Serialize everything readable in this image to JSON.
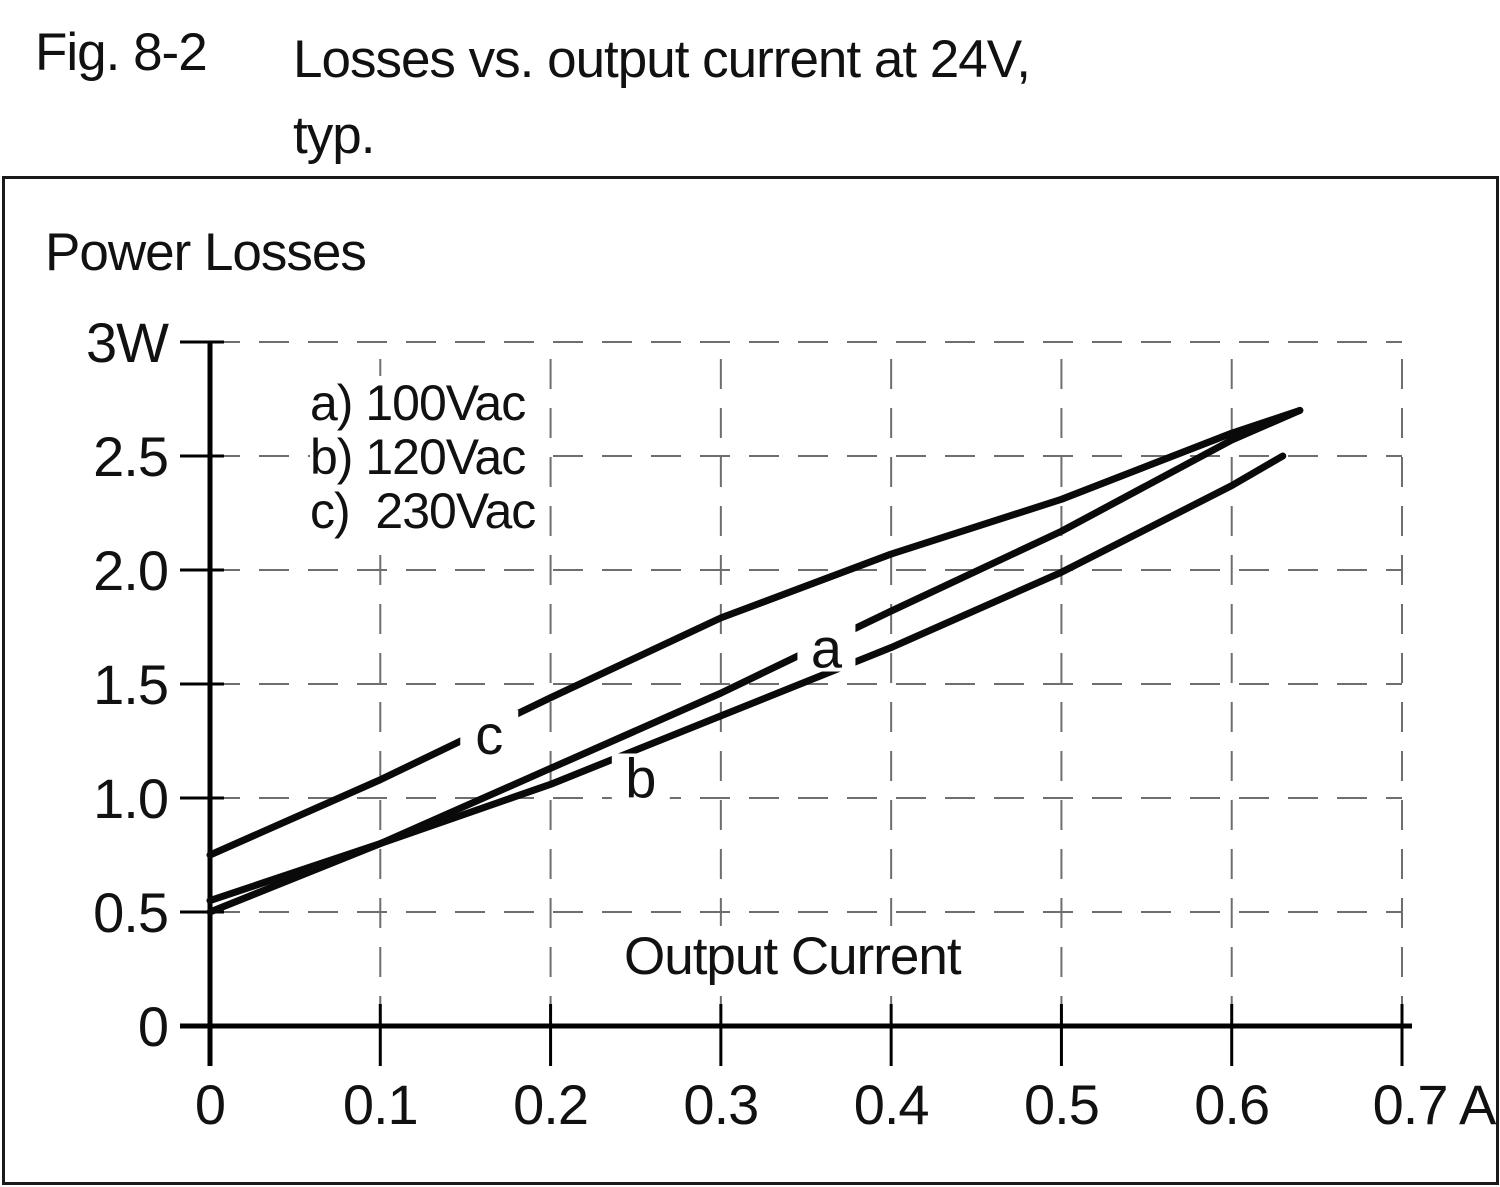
{
  "figure": {
    "number": "Fig. 8-2",
    "caption_line1": "Losses vs. output current at 24V,",
    "caption_line2": "typ."
  },
  "colors": {
    "curve": "#0a0a0a",
    "axis": "#000000",
    "grid": "#6e6e6e",
    "text": "#111111",
    "background": "#ffffff"
  },
  "chart_data": {
    "type": "line",
    "title": "Losses vs. output current at 24V, typ.",
    "ylabel": "Power Losses",
    "xlabel": "Output Current",
    "x_unit": "A",
    "y_unit": "W",
    "xlim": [
      0,
      0.7
    ],
    "ylim": [
      0,
      3
    ],
    "x_ticks": [
      0,
      0.1,
      0.2,
      0.3,
      0.4,
      0.5,
      0.6,
      0.7
    ],
    "x_tick_labels": [
      "0",
      "0.1",
      "0.2",
      "0.3",
      "0.4",
      "0.5",
      "0.6",
      "0.7 A"
    ],
    "y_ticks": [
      0,
      0.5,
      1.0,
      1.5,
      2.0,
      2.5,
      3.0
    ],
    "y_tick_labels": [
      "0",
      "0.5",
      "1.0",
      "1.5",
      "2.0",
      "2.5",
      "3W"
    ],
    "grid": "dashed",
    "legend_position": "upper-left-inside",
    "legend": [
      {
        "key": "a",
        "label": "a) 100Vac"
      },
      {
        "key": "b",
        "label": "b) 120Vac"
      },
      {
        "key": "c",
        "label": "c)  230Vac"
      }
    ],
    "series": [
      {
        "name": "a",
        "condition": "100Vac",
        "label_text": "a",
        "label_pos": {
          "x": 0.362,
          "y": 1.66
        },
        "points": [
          [
            0,
            0.5
          ],
          [
            0.1,
            0.8
          ],
          [
            0.2,
            1.13
          ],
          [
            0.3,
            1.46
          ],
          [
            0.4,
            1.82
          ],
          [
            0.5,
            2.17
          ],
          [
            0.6,
            2.57
          ],
          [
            0.64,
            2.7
          ]
        ]
      },
      {
        "name": "b",
        "condition": "120Vac",
        "label_text": "b",
        "label_pos": {
          "x": 0.253,
          "y": 1.09
        },
        "points": [
          [
            0,
            0.55
          ],
          [
            0.1,
            0.8
          ],
          [
            0.2,
            1.06
          ],
          [
            0.3,
            1.36
          ],
          [
            0.4,
            1.66
          ],
          [
            0.5,
            1.99
          ],
          [
            0.6,
            2.37
          ],
          [
            0.63,
            2.5
          ]
        ]
      },
      {
        "name": "c",
        "condition": "230Vac",
        "label_text": "c",
        "label_pos": {
          "x": 0.164,
          "y": 1.28
        },
        "points": [
          [
            0,
            0.75
          ],
          [
            0.1,
            1.08
          ],
          [
            0.2,
            1.44
          ],
          [
            0.3,
            1.79
          ],
          [
            0.4,
            2.07
          ],
          [
            0.5,
            2.31
          ],
          [
            0.6,
            2.6
          ],
          [
            0.64,
            2.7
          ]
        ]
      }
    ]
  }
}
